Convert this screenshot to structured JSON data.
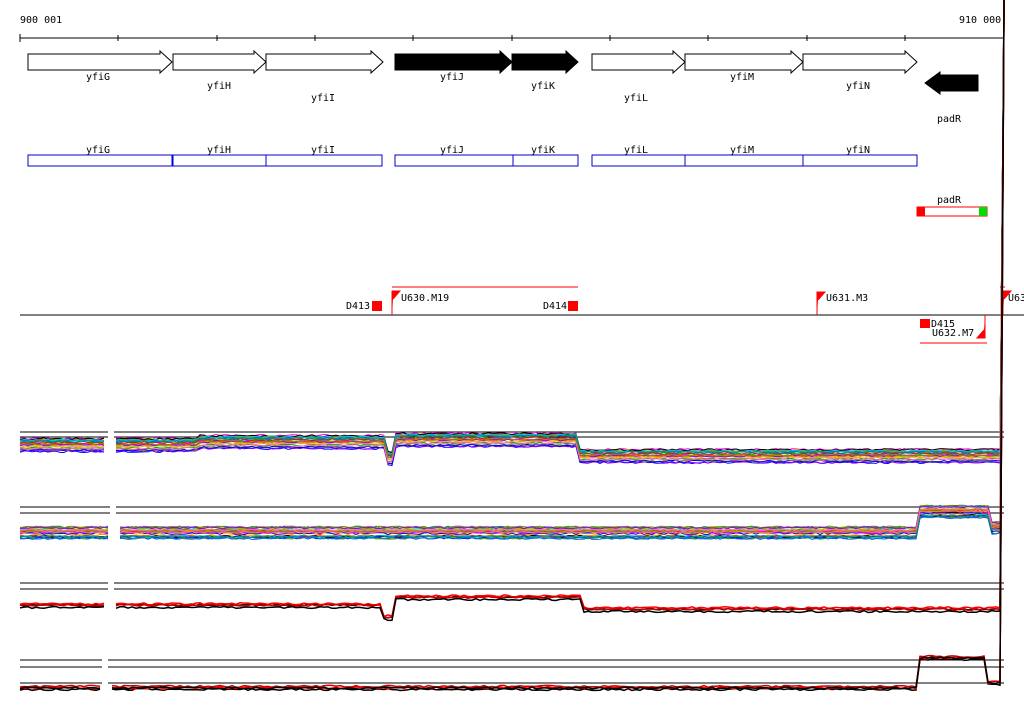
{
  "ruler": {
    "start_label": "900 001",
    "end_label": "910 000"
  },
  "genes": [
    {
      "name": "yfiG",
      "strand": "+",
      "highlight": false
    },
    {
      "name": "yfiH",
      "strand": "+",
      "highlight": false
    },
    {
      "name": "yfiI",
      "strand": "+",
      "highlight": false
    },
    {
      "name": "yfiJ",
      "strand": "+",
      "highlight": true
    },
    {
      "name": "yfiK",
      "strand": "+",
      "highlight": true
    },
    {
      "name": "yfiL",
      "strand": "+",
      "highlight": false
    },
    {
      "name": "yfiM",
      "strand": "+",
      "highlight": false
    },
    {
      "name": "yfiN",
      "strand": "+",
      "highlight": false
    },
    {
      "name": "padR",
      "strand": "-",
      "highlight": true
    }
  ],
  "gene_boxes": [
    "yfiG",
    "yfiH",
    "yfiI",
    "yfiJ",
    "yfiK",
    "yfiL",
    "yfiM",
    "yfiN"
  ],
  "padR_box": {
    "name": "padR",
    "left_color": "#ff0000",
    "right_color": "#00dd00"
  },
  "segments": [
    "D413",
    "U630.M19",
    "D414",
    "U631.M3",
    "U63",
    "D415",
    "U632.M7"
  ],
  "colors": {
    "accent": "#ff0000",
    "box_outline": "#0000cc",
    "track_line": "#000000"
  }
}
